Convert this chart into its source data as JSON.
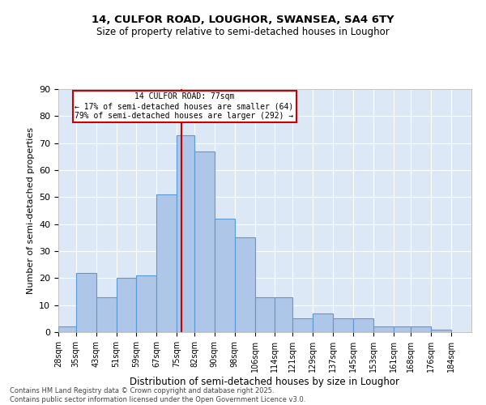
{
  "title1": "14, CULFOR ROAD, LOUGHOR, SWANSEA, SA4 6TY",
  "title2": "Size of property relative to semi-detached houses in Loughor",
  "xlabel": "Distribution of semi-detached houses by size in Loughor",
  "ylabel": "Number of semi-detached properties",
  "footer": "Contains HM Land Registry data © Crown copyright and database right 2025.\nContains public sector information licensed under the Open Government Licence v3.0.",
  "annotation_title": "14 CULFOR ROAD: 77sqm",
  "annotation_line1": "← 17% of semi-detached houses are smaller (64)",
  "annotation_line2": "79% of semi-detached houses are larger (292) →",
  "property_size": 77,
  "bin_labels": [
    "28sqm",
    "35sqm",
    "43sqm",
    "51sqm",
    "59sqm",
    "67sqm",
    "75sqm",
    "82sqm",
    "90sqm",
    "98sqm",
    "106sqm",
    "114sqm",
    "121sqm",
    "129sqm",
    "137sqm",
    "145sqm",
    "153sqm",
    "161sqm",
    "168sqm",
    "176sqm",
    "184sqm"
  ],
  "bin_edges": [
    28,
    35,
    43,
    51,
    59,
    67,
    75,
    82,
    90,
    98,
    106,
    114,
    121,
    129,
    137,
    145,
    153,
    161,
    168,
    176,
    184
  ],
  "bar_heights": [
    2,
    22,
    13,
    20,
    21,
    51,
    73,
    67,
    42,
    35,
    13,
    13,
    5,
    7,
    5,
    5,
    2,
    2,
    2,
    1
  ],
  "bar_color": "#aec6e8",
  "bar_edge_color": "#5b9bd5",
  "vline_color": "#cc0000",
  "vline_x": 77,
  "annotation_box_color": "#cc0000",
  "background_color": "#dce8f5",
  "ylim": [
    0,
    90
  ],
  "yticks": [
    0,
    10,
    20,
    30,
    40,
    50,
    60,
    70,
    80,
    90
  ]
}
